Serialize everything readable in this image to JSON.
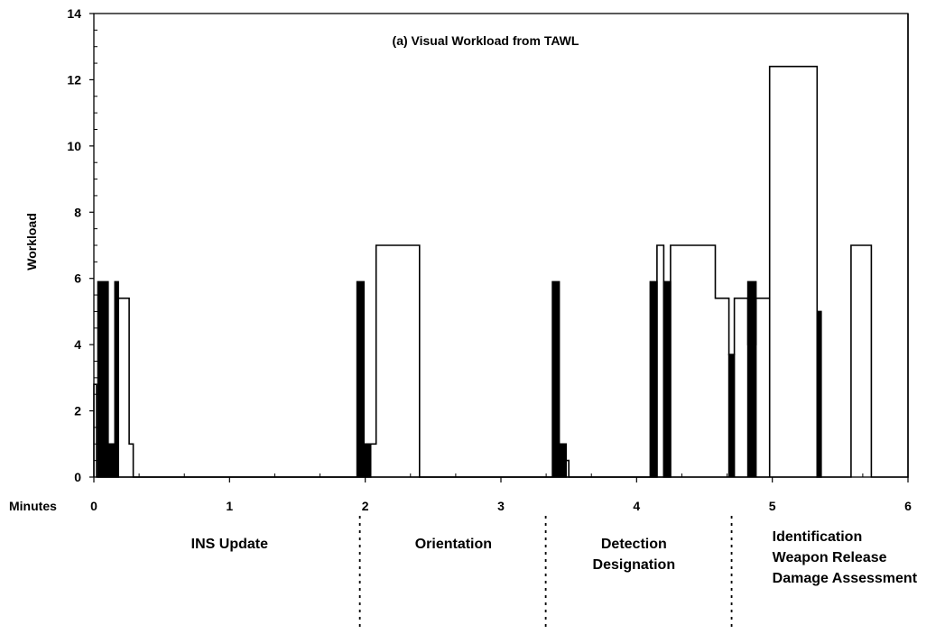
{
  "chart_data": {
    "type": "line",
    "title": "(a) Visual Workload from TAWL",
    "xlabel": "Minutes",
    "ylabel": "Workload",
    "xlim": [
      0,
      6
    ],
    "ylim": [
      0,
      14
    ],
    "x_ticks": [
      "0",
      "1",
      "2",
      "3",
      "4",
      "5",
      "6"
    ],
    "y_ticks": [
      "0",
      "2",
      "4",
      "6",
      "8",
      "10",
      "12",
      "14"
    ],
    "grid": false,
    "series": [
      {
        "style": "filled",
        "points": [
          [
            0.03,
            0
          ],
          [
            0.03,
            5.9
          ],
          [
            0.105,
            5.9
          ],
          [
            0.105,
            1
          ],
          [
            0.155,
            1
          ],
          [
            0.155,
            5.9
          ],
          [
            0.18,
            5.9
          ],
          [
            0.18,
            0
          ],
          [
            1.94,
            0
          ],
          [
            1.94,
            5.9
          ],
          [
            1.99,
            5.9
          ],
          [
            1.99,
            1
          ],
          [
            2.04,
            1
          ],
          [
            2.04,
            0
          ],
          [
            3.38,
            0
          ],
          [
            3.38,
            5.9
          ],
          [
            3.43,
            5.9
          ],
          [
            3.43,
            1
          ],
          [
            3.48,
            1
          ],
          [
            3.48,
            0
          ],
          [
            4.1,
            0
          ],
          [
            4.1,
            5.9
          ],
          [
            4.15,
            5.9
          ],
          [
            4.15,
            0
          ],
          [
            4.2,
            0
          ],
          [
            4.2,
            5.9
          ],
          [
            4.25,
            5.9
          ],
          [
            4.25,
            0
          ],
          [
            4.68,
            0
          ],
          [
            4.68,
            3.7
          ],
          [
            4.72,
            3.7
          ],
          [
            4.72,
            0
          ],
          [
            4.82,
            0
          ],
          [
            4.82,
            5.9
          ],
          [
            4.88,
            5.9
          ],
          [
            4.88,
            0
          ],
          [
            5.33,
            0
          ],
          [
            5.33,
            5.0
          ],
          [
            5.36,
            5.0
          ],
          [
            5.36,
            0
          ]
        ]
      },
      {
        "style": "outline",
        "points": [
          [
            0.0,
            0
          ],
          [
            0.0,
            2.8
          ],
          [
            0.02,
            2.8
          ],
          [
            0.02,
            0
          ],
          [
            0.18,
            0
          ],
          [
            0.18,
            5.4
          ],
          [
            0.26,
            5.4
          ],
          [
            0.26,
            1
          ],
          [
            0.29,
            1
          ],
          [
            0.29,
            0
          ],
          [
            2.04,
            0
          ],
          [
            2.04,
            1
          ],
          [
            2.08,
            1
          ],
          [
            2.08,
            7
          ],
          [
            2.4,
            7
          ],
          [
            2.4,
            0
          ],
          [
            3.48,
            0
          ],
          [
            3.48,
            0.5
          ],
          [
            3.5,
            0.5
          ],
          [
            3.5,
            0
          ],
          [
            4.15,
            0
          ],
          [
            4.15,
            7
          ],
          [
            4.2,
            7
          ],
          [
            4.2,
            0
          ],
          [
            4.25,
            0
          ],
          [
            4.25,
            7
          ],
          [
            4.58,
            7
          ],
          [
            4.58,
            5.4
          ],
          [
            4.68,
            5.4
          ],
          [
            4.68,
            3.7
          ],
          [
            4.72,
            3.7
          ],
          [
            4.72,
            5.4
          ],
          [
            4.82,
            5.4
          ],
          [
            4.82,
            4.0
          ],
          [
            4.88,
            4.0
          ],
          [
            4.88,
            5.4
          ],
          [
            4.98,
            5.4
          ],
          [
            4.98,
            0
          ],
          [
            4.98,
            0
          ],
          [
            4.98,
            12.4
          ],
          [
            5.33,
            12.4
          ],
          [
            5.33,
            0
          ],
          [
            5.58,
            0
          ],
          [
            5.58,
            7
          ],
          [
            5.73,
            7
          ],
          [
            5.73,
            0
          ],
          [
            6.0,
            0
          ],
          [
            6.0,
            14
          ]
        ]
      }
    ],
    "phase_boundaries": [
      1.96,
      3.33,
      4.7
    ],
    "phases": [
      {
        "x": 1.0,
        "lines": [
          "INS Update"
        ]
      },
      {
        "x": 2.65,
        "lines": [
          "Orientation"
        ]
      },
      {
        "x": 3.98,
        "lines": [
          "Detection",
          "Designation"
        ]
      },
      {
        "x": 5.0,
        "lines": [
          "Identification",
          "Weapon Release",
          "Damage Assessment"
        ]
      }
    ]
  }
}
